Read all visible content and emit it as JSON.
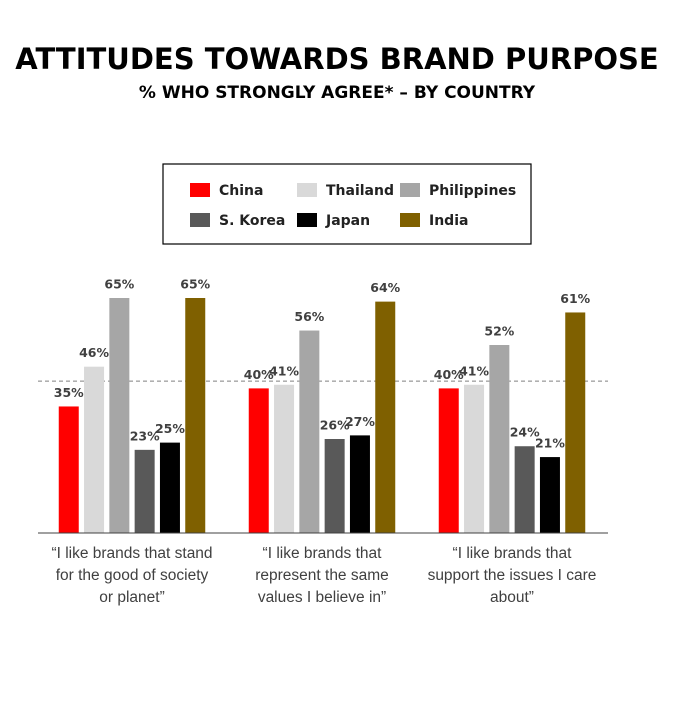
{
  "chart_data": {
    "type": "bar",
    "title": "ATTITUDES TOWARDS BRAND PURPOSE",
    "subtitle": "% WHO STRONGLY AGREE* – BY COUNTRY",
    "categories": [
      "“I like brands that stand for the good of society or planet”",
      "“I like brands that represent the same values I believe in”",
      "“I like brands that support the issues I care about”"
    ],
    "series": [
      {
        "name": "China",
        "color": "#ff0000",
        "values": [
          35,
          40,
          40
        ],
        "value_labels": [
          "35%",
          "40%",
          "40%"
        ]
      },
      {
        "name": "Thailand",
        "color": "#d9d9d9",
        "values": [
          46,
          41,
          41
        ],
        "value_labels": [
          "46%",
          "41%",
          "41%"
        ]
      },
      {
        "name": "Philippines",
        "color": "#a6a6a6",
        "values": [
          65,
          56,
          52
        ],
        "value_labels": [
          "65%",
          "56%",
          "52%"
        ]
      },
      {
        "name": "S. Korea",
        "color": "#595959",
        "values": [
          23,
          26,
          24
        ],
        "value_labels": [
          "23%",
          "26%",
          "24%"
        ]
      },
      {
        "name": "Japan",
        "color": "#000000",
        "values": [
          25,
          27,
          21
        ],
        "value_labels": [
          "25%",
          "27%",
          "21%"
        ]
      },
      {
        "name": "India",
        "color": "#7f6000",
        "values": [
          65,
          64,
          61
        ],
        "value_labels": [
          "65%",
          "64%",
          "61%"
        ]
      }
    ],
    "reference_line": 42,
    "ylim": [
      0,
      65
    ]
  }
}
